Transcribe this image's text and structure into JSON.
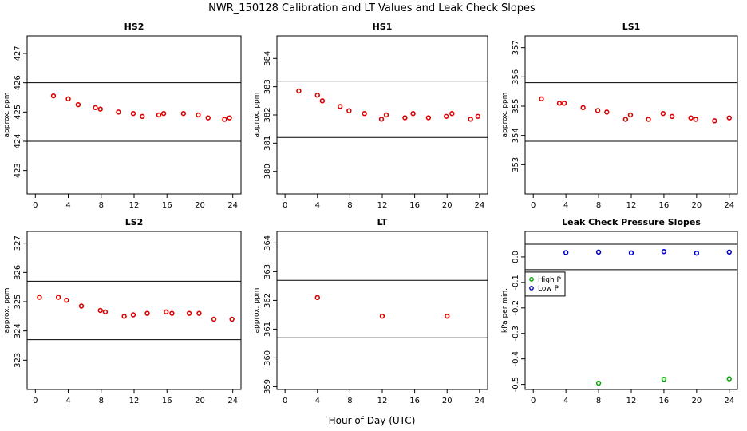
{
  "figure": {
    "title": "NWR_150128  Calibration and LT Values and Leak Check Slopes",
    "xlabel": "Hour of Day (UTC)"
  },
  "chart_data": [
    {
      "type": "scatter",
      "title": "HS2",
      "ylabel": "approx. ppm",
      "xlim": [
        -1,
        25
      ],
      "ylim": [
        422.2,
        427.6
      ],
      "xticks": [
        "0",
        "4",
        "8",
        "12",
        "16",
        "20",
        "24"
      ],
      "yticks": [
        "423",
        "424",
        "425",
        "426",
        "427"
      ],
      "hlines": [
        424,
        426
      ],
      "grid": false,
      "series": [
        {
          "color": "#dd0000",
          "x": [
            2.2,
            4.0,
            5.2,
            7.3,
            7.9,
            10.1,
            11.9,
            13.0,
            15.0,
            15.6,
            18.0,
            19.8,
            21.0,
            23.0,
            23.6
          ],
          "y": [
            425.55,
            425.45,
            425.25,
            425.15,
            425.1,
            425.0,
            424.95,
            424.85,
            424.9,
            424.95,
            424.95,
            424.9,
            424.8,
            424.75,
            424.8
          ]
        }
      ]
    },
    {
      "type": "scatter",
      "title": "HS1",
      "ylabel": "approx. ppm",
      "xlim": [
        -1,
        25
      ],
      "ylim": [
        379.2,
        384.8
      ],
      "xticks": [
        "0",
        "4",
        "8",
        "12",
        "16",
        "20",
        "24"
      ],
      "yticks": [
        "380",
        "381",
        "382",
        "383",
        "384"
      ],
      "hlines": [
        381.2,
        383.2
      ],
      "grid": false,
      "series": [
        {
          "color": "#dd0000",
          "x": [
            1.7,
            4.0,
            4.6,
            6.8,
            7.9,
            9.8,
            11.9,
            12.5,
            14.8,
            15.8,
            17.7,
            19.9,
            20.6,
            22.9,
            23.8
          ],
          "y": [
            382.85,
            382.7,
            382.5,
            382.3,
            382.15,
            382.05,
            381.85,
            382.0,
            381.9,
            382.05,
            381.9,
            381.95,
            382.05,
            381.85,
            381.95
          ]
        }
      ]
    },
    {
      "type": "scatter",
      "title": "LS1",
      "ylabel": "approx. ppm",
      "xlim": [
        -1,
        25
      ],
      "ylim": [
        352.0,
        357.4
      ],
      "xticks": [
        "0",
        "4",
        "8",
        "12",
        "16",
        "20",
        "24"
      ],
      "yticks": [
        "353",
        "354",
        "355",
        "356",
        "357"
      ],
      "hlines": [
        353.8,
        355.8
      ],
      "grid": false,
      "series": [
        {
          "color": "#dd0000",
          "x": [
            1.0,
            3.2,
            3.8,
            6.1,
            7.9,
            9.0,
            11.3,
            11.9,
            14.1,
            15.9,
            17.0,
            19.3,
            19.9,
            22.2,
            24.0
          ],
          "y": [
            355.25,
            355.1,
            355.1,
            354.95,
            354.85,
            354.8,
            354.55,
            354.7,
            354.55,
            354.75,
            354.65,
            354.6,
            354.55,
            354.5,
            354.6
          ]
        }
      ]
    },
    {
      "type": "scatter",
      "title": "LS2",
      "ylabel": "approx. ppm",
      "xlim": [
        -1,
        25
      ],
      "ylim": [
        322.0,
        327.4
      ],
      "xticks": [
        "0",
        "4",
        "8",
        "12",
        "16",
        "20",
        "24"
      ],
      "yticks": [
        "323",
        "324",
        "325",
        "326",
        "327"
      ],
      "hlines": [
        323.7,
        325.7
      ],
      "grid": false,
      "series": [
        {
          "color": "#dd0000",
          "x": [
            0.5,
            2.8,
            3.8,
            5.6,
            7.9,
            8.5,
            10.8,
            11.9,
            13.6,
            15.9,
            16.6,
            18.7,
            19.9,
            21.7,
            23.9
          ],
          "y": [
            325.15,
            325.15,
            325.05,
            324.85,
            324.7,
            324.65,
            324.5,
            324.55,
            324.6,
            324.65,
            324.6,
            324.6,
            324.6,
            324.4,
            324.4
          ]
        }
      ]
    },
    {
      "type": "scatter",
      "title": "LT",
      "ylabel": "approx. ppm",
      "xlim": [
        -1,
        25
      ],
      "ylim": [
        358.9,
        364.4
      ],
      "xticks": [
        "0",
        "4",
        "8",
        "12",
        "16",
        "20",
        "24"
      ],
      "yticks": [
        "359",
        "360",
        "361",
        "362",
        "363",
        "364"
      ],
      "hlines": [
        360.7,
        362.7
      ],
      "grid": false,
      "series": [
        {
          "color": "#dd0000",
          "x": [
            4.0,
            12.0,
            20.0
          ],
          "y": [
            362.1,
            361.45,
            361.45
          ]
        }
      ]
    },
    {
      "type": "scatter",
      "title": "Leak Check Pressure Slopes",
      "ylabel": "kPa per min.",
      "xlim": [
        -1,
        25
      ],
      "ylim": [
        -0.52,
        0.1
      ],
      "xticks": [
        "0",
        "4",
        "8",
        "12",
        "16",
        "20",
        "24"
      ],
      "yticks": [
        "-0.5",
        "-0.4",
        "-0.3",
        "-0.2",
        "-0.1",
        "0.0"
      ],
      "ytick_values": [
        -0.5,
        -0.4,
        -0.3,
        -0.2,
        -0.1,
        0.0
      ],
      "hlines": [
        0.05,
        -0.05
      ],
      "grid": false,
      "legend_position": "left",
      "series": [
        {
          "name": "High P",
          "color": "#00aa00",
          "x": [
            8.0,
            16.0,
            24.0
          ],
          "y": [
            -0.495,
            -0.48,
            -0.478
          ]
        },
        {
          "name": "Low P",
          "color": "#0000cc",
          "x": [
            4.0,
            8.0,
            12.0,
            16.0,
            20.0,
            24.0
          ],
          "y": [
            0.017,
            0.019,
            0.016,
            0.021,
            0.015,
            0.019
          ]
        }
      ]
    }
  ]
}
